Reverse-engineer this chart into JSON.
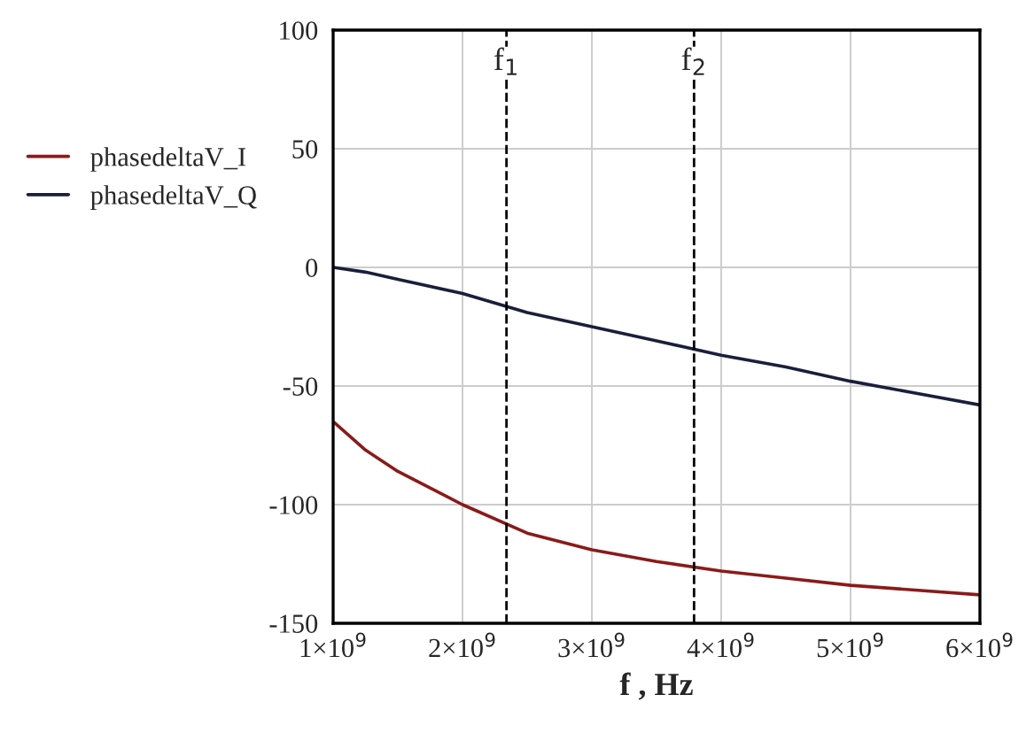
{
  "chart_data": {
    "type": "line",
    "xlabel": "f , Hz",
    "x": [
      1000000000.0,
      1250000000.0,
      1500000000.0,
      2000000000.0,
      2500000000.0,
      3000000000.0,
      3500000000.0,
      4000000000.0,
      4500000000.0,
      5000000000.0,
      5500000000.0,
      6000000000.0
    ],
    "series": [
      {
        "name": "phasedeltaV_I",
        "color": "#8b1a1a",
        "values": [
          -65,
          -77,
          -86,
          -100,
          -112,
          -119,
          -124,
          -128,
          -131,
          -134,
          -136,
          -138
        ]
      },
      {
        "name": "phasedeltaV_Q",
        "color": "#1a1f3a",
        "values": [
          0,
          -2,
          -5,
          -11,
          -19,
          -25,
          -31,
          -37,
          -42,
          -48,
          -53,
          -58
        ]
      }
    ],
    "xlim": [
      1000000000.0,
      6000000000.0
    ],
    "xticks": [
      {
        "value": 1000000000.0,
        "label": "1×10$^{9}$"
      },
      {
        "value": 2000000000.0,
        "label": "2×10$^{9}$"
      },
      {
        "value": 3000000000.0,
        "label": "3×10$^{9}$"
      },
      {
        "value": 4000000000.0,
        "label": "4×10$^{9}$"
      },
      {
        "value": 5000000000.0,
        "label": "5×10$^{9}$"
      },
      {
        "value": 6000000000.0,
        "label": "6×10$^{9}$"
      }
    ],
    "ylim": [
      -150,
      100
    ],
    "yticks": [
      -150,
      -100,
      -50,
      0,
      50,
      100
    ],
    "ref_lines": [
      {
        "axis": "x",
        "value": 2340000000.0,
        "label": "f$_{1}$",
        "color": "#000000",
        "line_style": "dashed"
      },
      {
        "axis": "x",
        "value": 3790000000.0,
        "label": "f$_{2}$",
        "color": "#000000",
        "line_style": "dashed"
      }
    ],
    "grid": true,
    "legend": "left",
    "line_style": "solid",
    "marker": "none"
  }
}
